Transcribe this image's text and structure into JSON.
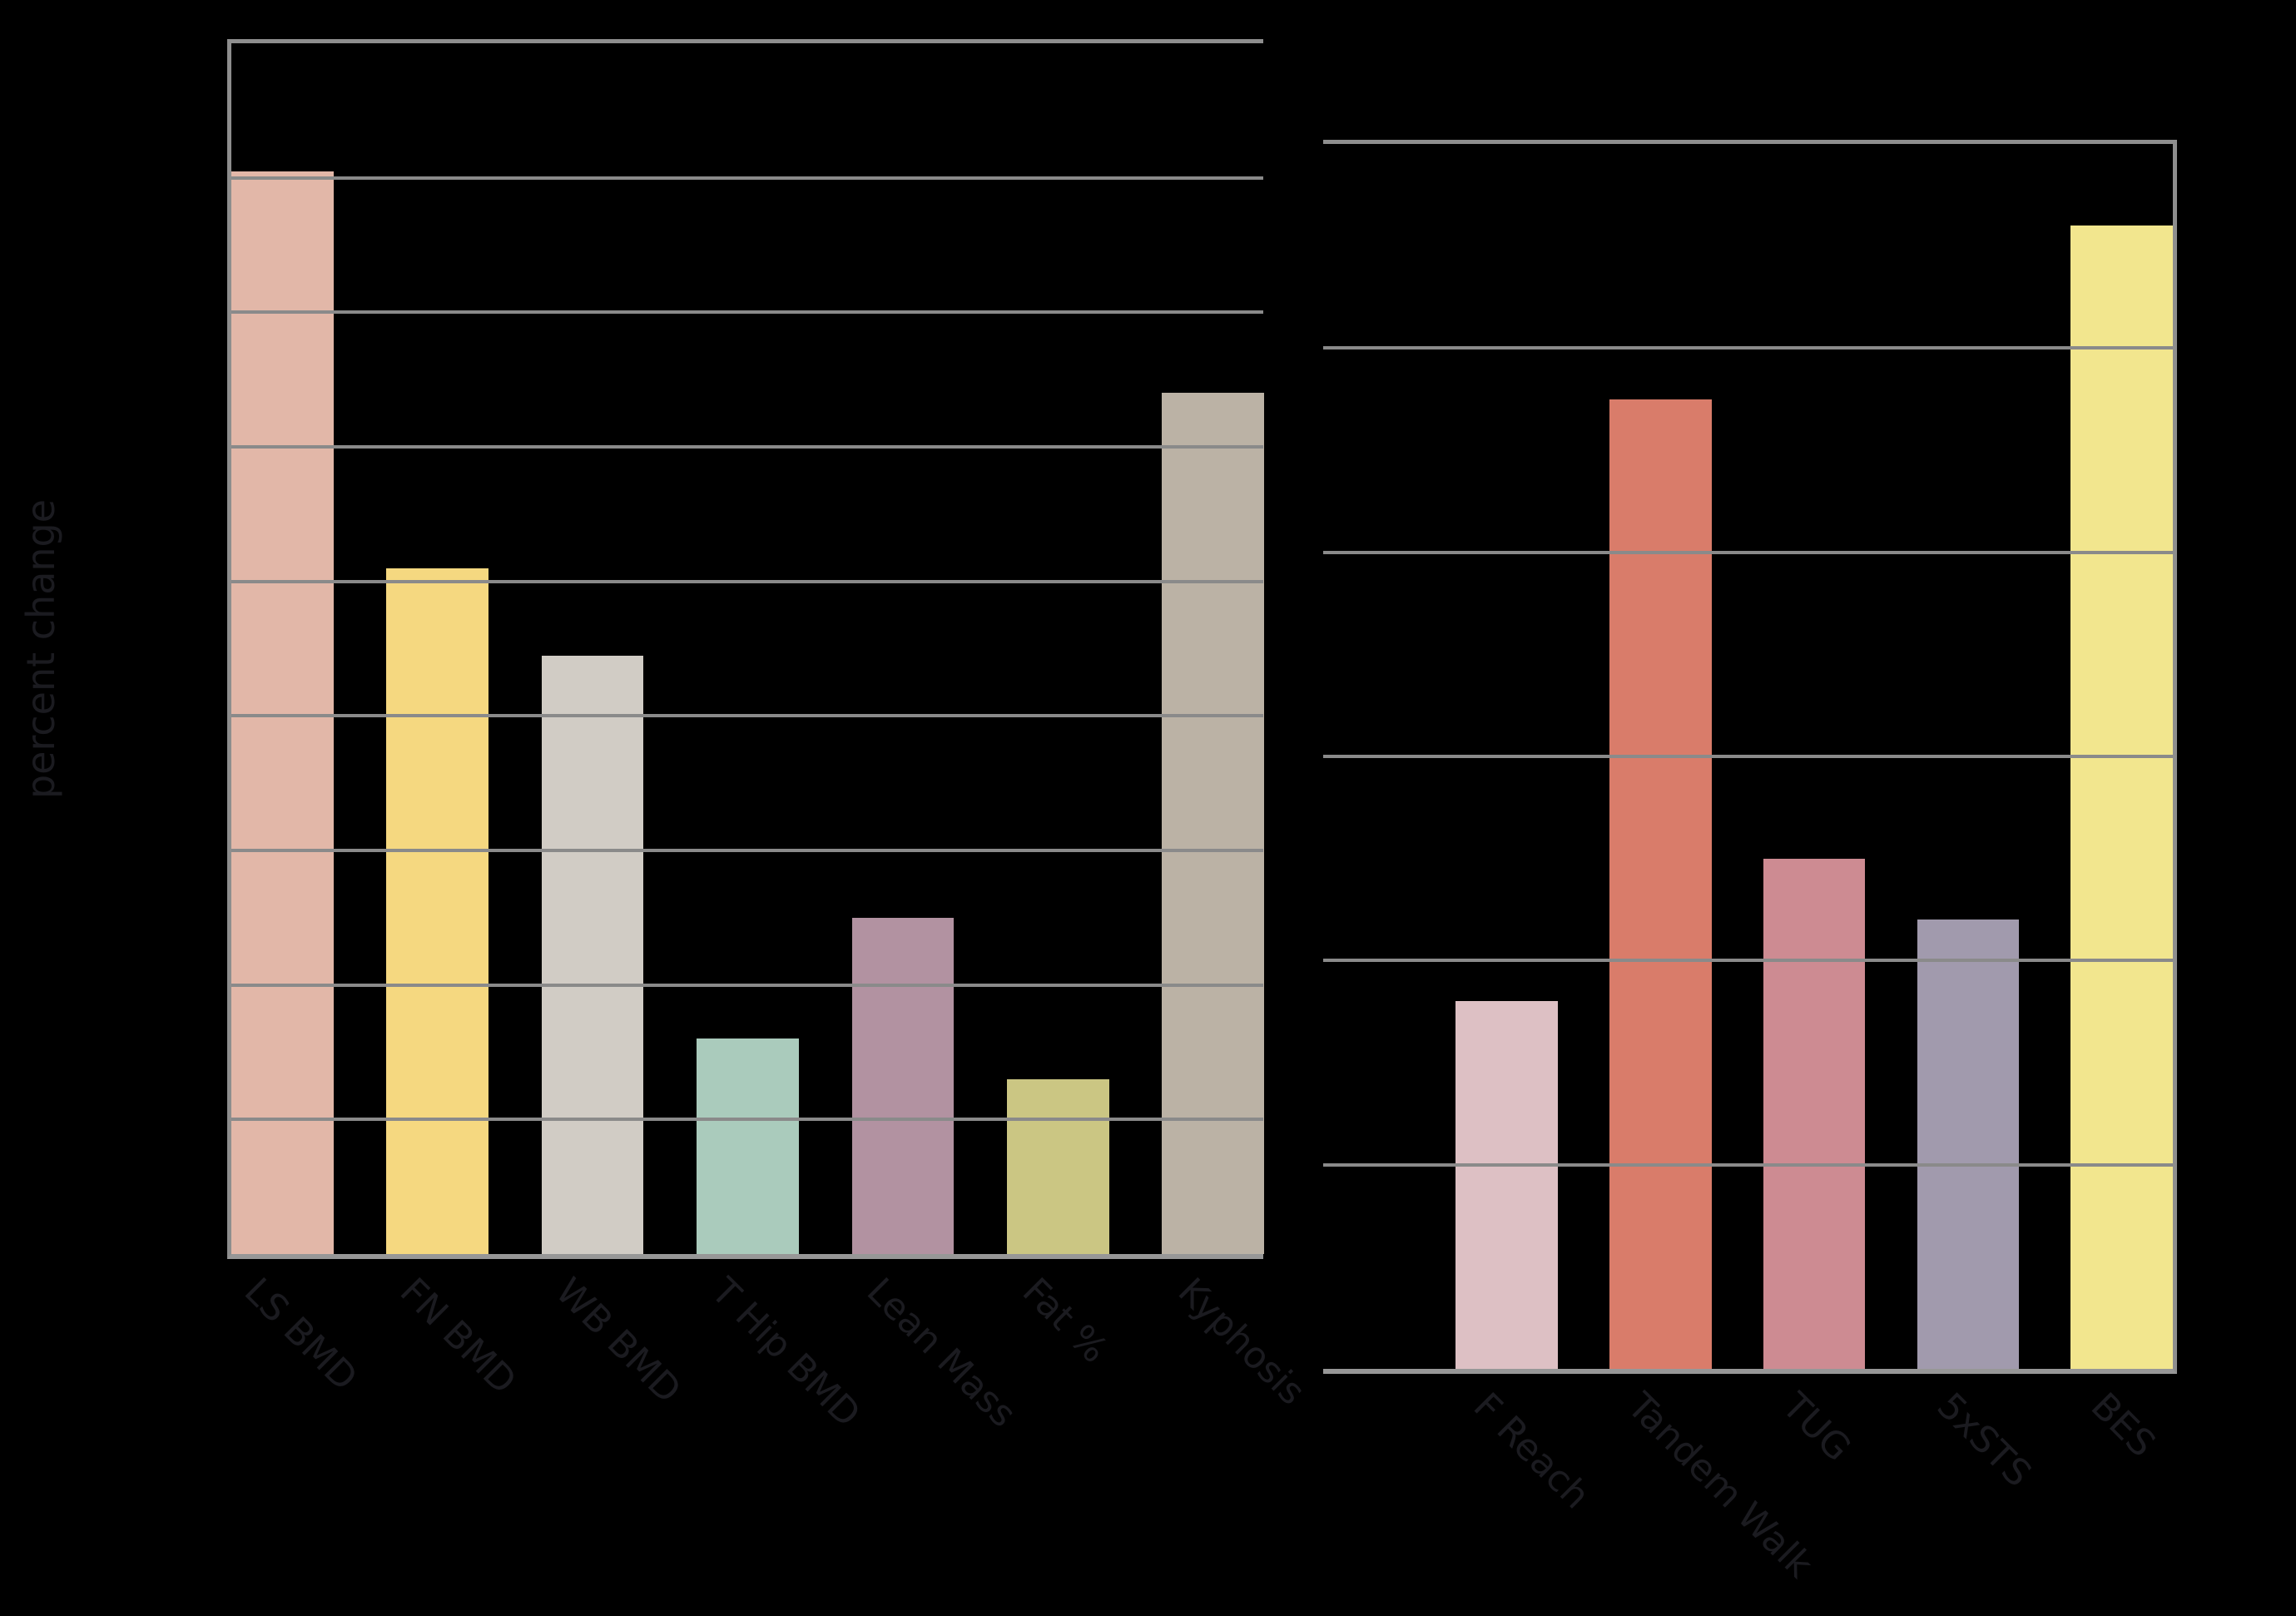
{
  "figure": {
    "background_color": "#000000",
    "text_color": "#1b1b20",
    "grid_color": "#8a8a8a",
    "spine_color": "#8e8e8e",
    "ylabel": "percent change"
  },
  "chart_data": [
    {
      "type": "bar",
      "panel": "left",
      "title": "",
      "xlabel": "",
      "ylabel": "percent change",
      "ylim": [
        0,
        9
      ],
      "gridline_step": 1,
      "grid": true,
      "legend": false,
      "categories": [
        "LS BMD",
        "FN BMD",
        "WB BMD",
        "T Hip BMD",
        "Lean Mass",
        "Fat %",
        "Kyphosis"
      ],
      "values": [
        8.05,
        5.1,
        4.45,
        1.6,
        2.5,
        1.3,
        6.4
      ],
      "colors": [
        "#e2b7a8",
        "#f5d880",
        "#d1ccc5",
        "#aacbbc",
        "#b292a1",
        "#cbc683",
        "#bbb2a5"
      ],
      "bar_centers_frac": [
        0.0494,
        0.1998,
        0.3501,
        0.5004,
        0.6507,
        0.801,
        0.9514
      ],
      "bar_width_frac": 0.0989
    },
    {
      "type": "bar",
      "panel": "right",
      "title": "",
      "xlabel": "",
      "ylabel": "",
      "ylim": [
        0,
        6
      ],
      "gridline_step": 1,
      "grid": true,
      "legend": false,
      "categories": [
        "F Reach",
        "Tandem Walk",
        "TUG",
        "5xSTS",
        "BES"
      ],
      "values": [
        1.8,
        4.75,
        2.5,
        2.2,
        5.6
      ],
      "colors": [
        "#ddc0c4",
        "#d97c6a",
        "#cd8b92",
        "#a19aad",
        "#f2e68e"
      ],
      "bar_centers_frac": [
        0.216,
        0.397,
        0.578,
        0.759,
        0.94
      ],
      "bar_width_frac": 0.12
    }
  ]
}
